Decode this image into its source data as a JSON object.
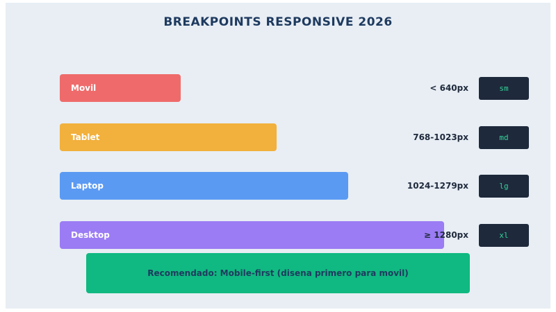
{
  "title": "BREAKPOINTS RESPONSIVE 2026",
  "breakpoints": [
    {
      "name": "Movil",
      "range": "< 640px",
      "code": "sm",
      "color": "#ef6b6b"
    },
    {
      "name": "Tablet",
      "range": "768-1023px",
      "code": "md",
      "color": "#f2b03c"
    },
    {
      "name": "Laptop",
      "range": "1024-1279px",
      "code": "lg",
      "color": "#5b9af3"
    },
    {
      "name": "Desktop",
      "range": "≥ 1280px",
      "code": "xl",
      "color": "#9b7cf4"
    }
  ],
  "recommendation": "Recomendado: Mobile-first (disena primero para movil)",
  "colors": {
    "background": "#e8eef4",
    "title": "#1e3a5f",
    "badge_bg": "#1e293b",
    "badge_text": "#34d399",
    "recommend_bg": "#10b981"
  }
}
